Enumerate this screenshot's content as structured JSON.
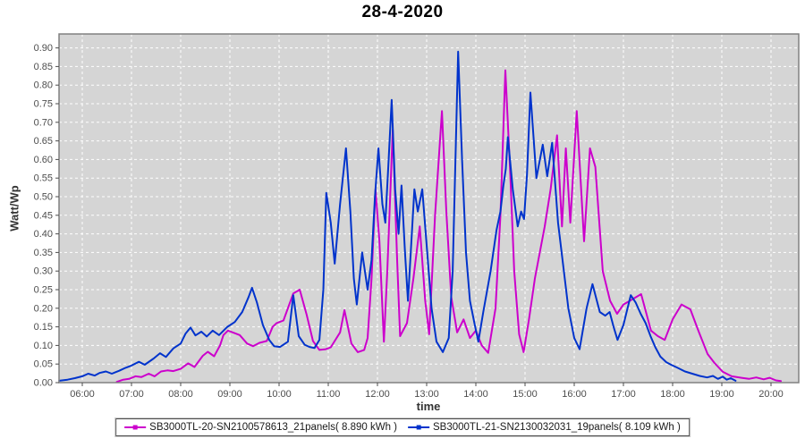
{
  "colors": {
    "plot_bg": "#d5d5d5",
    "grid": "#ffffff",
    "plot_border": "#808080",
    "axis": "#4d4d4d",
    "tick_text": "#4d4d4d",
    "title_text": "#000000"
  },
  "chart_data": {
    "type": "line",
    "title": "28-4-2020",
    "xlabel": "time",
    "ylabel": "Watt/Wp",
    "ylim": [
      0,
      0.9375
    ],
    "xlim_hours": [
      5.527,
      20.563
    ],
    "grid": true,
    "legend_position": "bottom",
    "y_ticks": [
      {
        "v": 0.0,
        "label": "0.00"
      },
      {
        "v": 0.05,
        "label": "0.05"
      },
      {
        "v": 0.1,
        "label": "0.10"
      },
      {
        "v": 0.15,
        "label": "0.15"
      },
      {
        "v": 0.2,
        "label": "0.20"
      },
      {
        "v": 0.25,
        "label": "0.25"
      },
      {
        "v": 0.3,
        "label": "0.30"
      },
      {
        "v": 0.35,
        "label": "0.35"
      },
      {
        "v": 0.4,
        "label": "0.40"
      },
      {
        "v": 0.45,
        "label": "0.45"
      },
      {
        "v": 0.5,
        "label": "0.50"
      },
      {
        "v": 0.55,
        "label": "0.55"
      },
      {
        "v": 0.6,
        "label": "0.60"
      },
      {
        "v": 0.65,
        "label": "0.65"
      },
      {
        "v": 0.7,
        "label": "0.70"
      },
      {
        "v": 0.75,
        "label": "0.75"
      },
      {
        "v": 0.8,
        "label": "0.80"
      },
      {
        "v": 0.85,
        "label": "0.85"
      },
      {
        "v": 0.9,
        "label": "0.90"
      }
    ],
    "x_ticks": [
      {
        "h": 6,
        "label": "06:00"
      },
      {
        "h": 7,
        "label": "07:00"
      },
      {
        "h": 8,
        "label": "08:00"
      },
      {
        "h": 9,
        "label": "09:00"
      },
      {
        "h": 10,
        "label": "10:00"
      },
      {
        "h": 11,
        "label": "11:00"
      },
      {
        "h": 12,
        "label": "12:00"
      },
      {
        "h": 13,
        "label": "13:00"
      },
      {
        "h": 14,
        "label": "14:00"
      },
      {
        "h": 15,
        "label": "15:00"
      },
      {
        "h": 16,
        "label": "16:00"
      },
      {
        "h": 17,
        "label": "17:00"
      },
      {
        "h": 18,
        "label": "18:00"
      },
      {
        "h": 19,
        "label": "19:00"
      },
      {
        "h": 20,
        "label": "20:00"
      }
    ],
    "series": [
      {
        "name": "SB3000TL-20-SN2100578613_21panels( 8.890 kWh )",
        "color": "#cc00cc",
        "points": [
          [
            6.7,
            0.002
          ],
          [
            6.83,
            0.008
          ],
          [
            6.95,
            0.01
          ],
          [
            7.08,
            0.017
          ],
          [
            7.2,
            0.015
          ],
          [
            7.35,
            0.024
          ],
          [
            7.47,
            0.017
          ],
          [
            7.6,
            0.03
          ],
          [
            7.73,
            0.033
          ],
          [
            7.85,
            0.031
          ],
          [
            8.0,
            0.037
          ],
          [
            8.15,
            0.052
          ],
          [
            8.28,
            0.042
          ],
          [
            8.45,
            0.072
          ],
          [
            8.55,
            0.083
          ],
          [
            8.68,
            0.071
          ],
          [
            8.8,
            0.1
          ],
          [
            8.87,
            0.128
          ],
          [
            8.96,
            0.14
          ],
          [
            9.1,
            0.133
          ],
          [
            9.2,
            0.128
          ],
          [
            9.35,
            0.105
          ],
          [
            9.47,
            0.098
          ],
          [
            9.6,
            0.107
          ],
          [
            9.75,
            0.112
          ],
          [
            9.87,
            0.15
          ],
          [
            9.95,
            0.16
          ],
          [
            10.09,
            0.167
          ],
          [
            10.29,
            0.24
          ],
          [
            10.42,
            0.25
          ],
          [
            10.56,
            0.183
          ],
          [
            10.69,
            0.112
          ],
          [
            10.82,
            0.088
          ],
          [
            10.95,
            0.09
          ],
          [
            11.05,
            0.095
          ],
          [
            11.24,
            0.135
          ],
          [
            11.33,
            0.195
          ],
          [
            11.47,
            0.105
          ],
          [
            11.6,
            0.082
          ],
          [
            11.73,
            0.088
          ],
          [
            11.8,
            0.12
          ],
          [
            11.88,
            0.28
          ],
          [
            11.96,
            0.52
          ],
          [
            12.04,
            0.38
          ],
          [
            12.13,
            0.11
          ],
          [
            12.2,
            0.3
          ],
          [
            12.31,
            0.68
          ],
          [
            12.4,
            0.33
          ],
          [
            12.46,
            0.125
          ],
          [
            12.6,
            0.16
          ],
          [
            12.73,
            0.28
          ],
          [
            12.86,
            0.42
          ],
          [
            12.97,
            0.22
          ],
          [
            13.05,
            0.13
          ],
          [
            13.17,
            0.45
          ],
          [
            13.31,
            0.73
          ],
          [
            13.4,
            0.46
          ],
          [
            13.5,
            0.23
          ],
          [
            13.62,
            0.135
          ],
          [
            13.75,
            0.17
          ],
          [
            13.88,
            0.12
          ],
          [
            14.0,
            0.14
          ],
          [
            14.12,
            0.1
          ],
          [
            14.25,
            0.08
          ],
          [
            14.4,
            0.2
          ],
          [
            14.5,
            0.45
          ],
          [
            14.6,
            0.84
          ],
          [
            14.7,
            0.56
          ],
          [
            14.78,
            0.3
          ],
          [
            14.88,
            0.13
          ],
          [
            14.97,
            0.082
          ],
          [
            15.08,
            0.17
          ],
          [
            15.2,
            0.28
          ],
          [
            15.4,
            0.42
          ],
          [
            15.52,
            0.52
          ],
          [
            15.65,
            0.665
          ],
          [
            15.75,
            0.42
          ],
          [
            15.83,
            0.63
          ],
          [
            15.92,
            0.43
          ],
          [
            16.05,
            0.73
          ],
          [
            16.2,
            0.38
          ],
          [
            16.32,
            0.63
          ],
          [
            16.43,
            0.58
          ],
          [
            16.58,
            0.3
          ],
          [
            16.73,
            0.22
          ],
          [
            16.87,
            0.185
          ],
          [
            17.0,
            0.21
          ],
          [
            17.13,
            0.22
          ],
          [
            17.36,
            0.238
          ],
          [
            17.56,
            0.14
          ],
          [
            17.7,
            0.125
          ],
          [
            17.84,
            0.115
          ],
          [
            18.0,
            0.17
          ],
          [
            18.18,
            0.21
          ],
          [
            18.36,
            0.197
          ],
          [
            18.53,
            0.137
          ],
          [
            18.71,
            0.077
          ],
          [
            18.85,
            0.053
          ],
          [
            19.02,
            0.029
          ],
          [
            19.2,
            0.017
          ],
          [
            19.4,
            0.013
          ],
          [
            19.55,
            0.01
          ],
          [
            19.7,
            0.014
          ],
          [
            19.85,
            0.009
          ],
          [
            19.97,
            0.013
          ],
          [
            20.1,
            0.006
          ],
          [
            20.2,
            0.004
          ]
        ]
      },
      {
        "name": "SB3000TL-21-SN2130032031_19panels( 8.109 kWh )",
        "color": "#0033cc",
        "points": [
          [
            5.53,
            0.005
          ],
          [
            5.7,
            0.008
          ],
          [
            5.85,
            0.012
          ],
          [
            6.0,
            0.017
          ],
          [
            6.12,
            0.024
          ],
          [
            6.25,
            0.019
          ],
          [
            6.35,
            0.026
          ],
          [
            6.48,
            0.03
          ],
          [
            6.6,
            0.024
          ],
          [
            6.75,
            0.032
          ],
          [
            6.88,
            0.04
          ],
          [
            7.0,
            0.046
          ],
          [
            7.15,
            0.056
          ],
          [
            7.27,
            0.048
          ],
          [
            7.45,
            0.065
          ],
          [
            7.58,
            0.079
          ],
          [
            7.7,
            0.069
          ],
          [
            7.85,
            0.092
          ],
          [
            8.0,
            0.105
          ],
          [
            8.1,
            0.132
          ],
          [
            8.2,
            0.148
          ],
          [
            8.3,
            0.127
          ],
          [
            8.42,
            0.137
          ],
          [
            8.53,
            0.124
          ],
          [
            8.65,
            0.14
          ],
          [
            8.78,
            0.128
          ],
          [
            8.95,
            0.15
          ],
          [
            9.1,
            0.163
          ],
          [
            9.25,
            0.19
          ],
          [
            9.38,
            0.23
          ],
          [
            9.45,
            0.255
          ],
          [
            9.55,
            0.215
          ],
          [
            9.67,
            0.155
          ],
          [
            9.8,
            0.115
          ],
          [
            9.9,
            0.098
          ],
          [
            10.02,
            0.096
          ],
          [
            10.18,
            0.11
          ],
          [
            10.29,
            0.235
          ],
          [
            10.4,
            0.125
          ],
          [
            10.52,
            0.102
          ],
          [
            10.62,
            0.096
          ],
          [
            10.72,
            0.093
          ],
          [
            10.82,
            0.115
          ],
          [
            10.9,
            0.25
          ],
          [
            10.96,
            0.51
          ],
          [
            11.05,
            0.43
          ],
          [
            11.13,
            0.32
          ],
          [
            11.24,
            0.48
          ],
          [
            11.36,
            0.63
          ],
          [
            11.45,
            0.46
          ],
          [
            11.52,
            0.28
          ],
          [
            11.58,
            0.21
          ],
          [
            11.69,
            0.35
          ],
          [
            11.8,
            0.25
          ],
          [
            11.88,
            0.33
          ],
          [
            11.95,
            0.5
          ],
          [
            12.02,
            0.63
          ],
          [
            12.1,
            0.48
          ],
          [
            12.16,
            0.43
          ],
          [
            12.22,
            0.58
          ],
          [
            12.29,
            0.76
          ],
          [
            12.36,
            0.52
          ],
          [
            12.43,
            0.4
          ],
          [
            12.49,
            0.53
          ],
          [
            12.56,
            0.35
          ],
          [
            12.62,
            0.22
          ],
          [
            12.75,
            0.52
          ],
          [
            12.82,
            0.46
          ],
          [
            12.91,
            0.52
          ],
          [
            13.0,
            0.37
          ],
          [
            13.1,
            0.2
          ],
          [
            13.2,
            0.11
          ],
          [
            13.33,
            0.082
          ],
          [
            13.45,
            0.12
          ],
          [
            13.53,
            0.3
          ],
          [
            13.64,
            0.89
          ],
          [
            13.72,
            0.6
          ],
          [
            13.8,
            0.35
          ],
          [
            13.88,
            0.22
          ],
          [
            13.97,
            0.16
          ],
          [
            14.05,
            0.11
          ],
          [
            14.15,
            0.19
          ],
          [
            14.3,
            0.3
          ],
          [
            14.42,
            0.41
          ],
          [
            14.5,
            0.46
          ],
          [
            14.56,
            0.53
          ],
          [
            14.61,
            0.575
          ],
          [
            14.65,
            0.66
          ],
          [
            14.75,
            0.52
          ],
          [
            14.85,
            0.42
          ],
          [
            14.92,
            0.46
          ],
          [
            14.98,
            0.44
          ],
          [
            15.04,
            0.56
          ],
          [
            15.11,
            0.78
          ],
          [
            15.23,
            0.55
          ],
          [
            15.36,
            0.64
          ],
          [
            15.45,
            0.555
          ],
          [
            15.55,
            0.645
          ],
          [
            15.67,
            0.43
          ],
          [
            15.78,
            0.31
          ],
          [
            15.88,
            0.2
          ],
          [
            16.0,
            0.12
          ],
          [
            16.11,
            0.09
          ],
          [
            16.25,
            0.2
          ],
          [
            16.37,
            0.265
          ],
          [
            16.52,
            0.19
          ],
          [
            16.63,
            0.18
          ],
          [
            16.72,
            0.19
          ],
          [
            16.8,
            0.15
          ],
          [
            16.88,
            0.115
          ],
          [
            17.0,
            0.155
          ],
          [
            17.15,
            0.235
          ],
          [
            17.25,
            0.215
          ],
          [
            17.35,
            0.185
          ],
          [
            17.45,
            0.16
          ],
          [
            17.55,
            0.125
          ],
          [
            17.65,
            0.095
          ],
          [
            17.75,
            0.07
          ],
          [
            17.87,
            0.055
          ],
          [
            17.97,
            0.048
          ],
          [
            18.1,
            0.04
          ],
          [
            18.25,
            0.03
          ],
          [
            18.4,
            0.024
          ],
          [
            18.55,
            0.018
          ],
          [
            18.7,
            0.014
          ],
          [
            18.82,
            0.018
          ],
          [
            18.92,
            0.01
          ],
          [
            19.02,
            0.016
          ],
          [
            19.1,
            0.008
          ],
          [
            19.18,
            0.012
          ],
          [
            19.28,
            0.005
          ]
        ]
      }
    ]
  }
}
